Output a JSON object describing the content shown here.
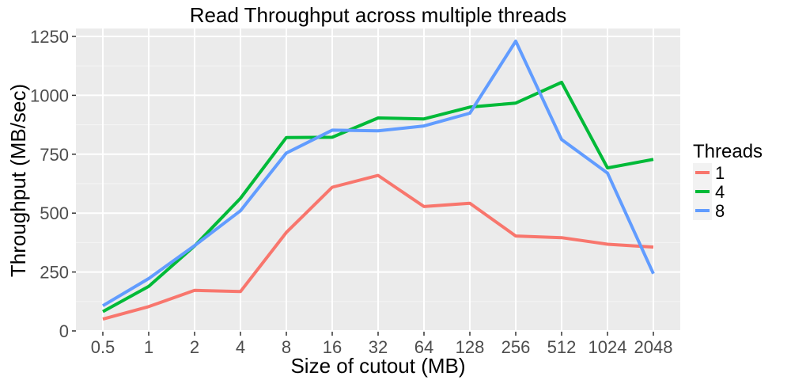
{
  "chart_data": {
    "type": "line",
    "title": "Read Throughput across multiple threads",
    "xlabel": "Size of cutout (MB)",
    "ylabel": "Throughput (MB/sec)",
    "categories": [
      "0.5",
      "1",
      "2",
      "4",
      "8",
      "16",
      "32",
      "64",
      "128",
      "256",
      "512",
      "1024",
      "2048"
    ],
    "yticks": [
      0,
      250,
      500,
      750,
      1000,
      1250
    ],
    "ylim": [
      0,
      1300
    ],
    "grid": true,
    "legend_title": "Threads",
    "legend_position": "right",
    "series": [
      {
        "name": "1",
        "color": "#F8766D",
        "values": [
          50,
          103,
          172,
          167,
          418,
          610,
          660,
          528,
          542,
          403,
          396,
          368,
          356
        ]
      },
      {
        "name": "4",
        "color": "#00BA38",
        "values": [
          82,
          189,
          361,
          563,
          821,
          822,
          904,
          900,
          950,
          967,
          1055,
          692,
          728
        ]
      },
      {
        "name": "8",
        "color": "#619CFF",
        "values": [
          107,
          222,
          362,
          510,
          755,
          852,
          849,
          870,
          924,
          1230,
          812,
          670,
          243
        ]
      }
    ]
  }
}
